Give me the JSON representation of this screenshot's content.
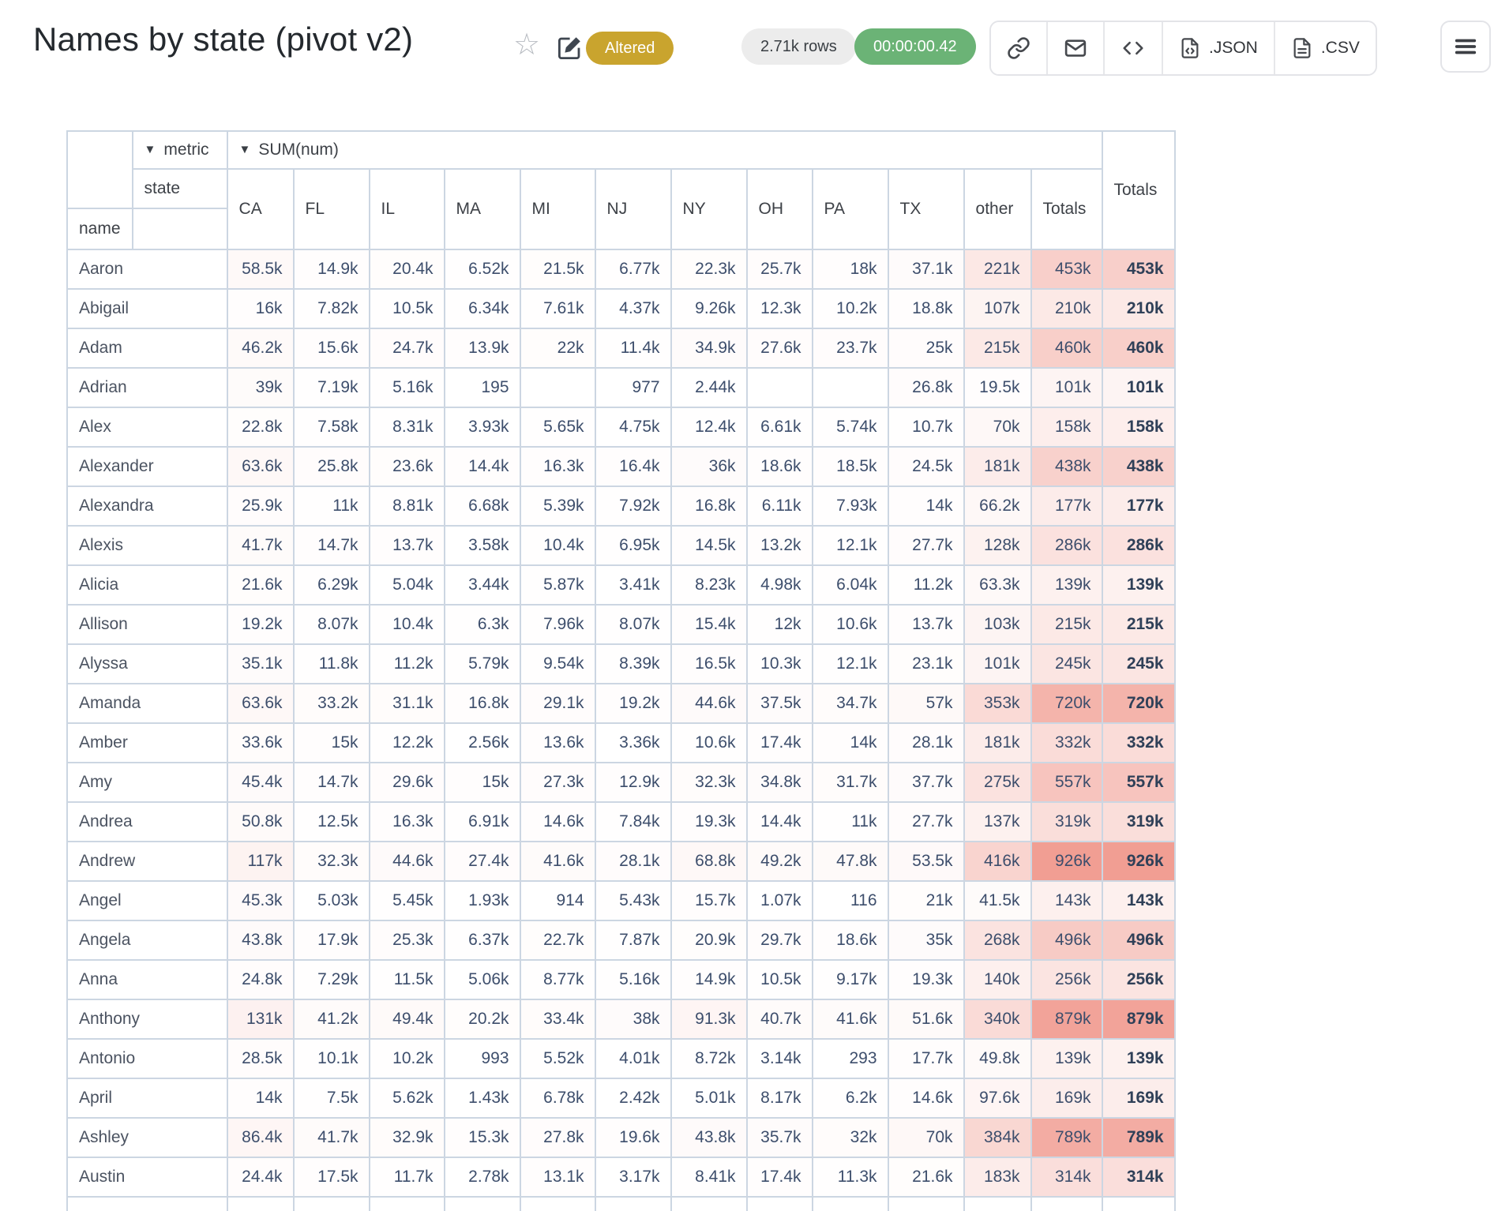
{
  "header": {
    "title": "Names by state (pivot v2)",
    "altered_badge": "Altered",
    "rows_badge": "2.71k rows",
    "timer_badge": "00:00:00.42",
    "json_button": ".JSON",
    "csv_button": ".CSV"
  },
  "icons": {
    "star": "☆",
    "edit": "pencil-square",
    "link": "chain-link",
    "mail": "envelope",
    "embed": "code-brackets",
    "json_file": "file-code",
    "csv_file": "file-text",
    "menu": "hamburger",
    "dropdown": "▼"
  },
  "colors": {
    "altered_badge_bg": "#c9a42e",
    "rows_badge_bg": "#ececec",
    "timer_badge_bg": "#6bb376",
    "heat_base_rgb": "241,158,147",
    "table_border": "#ccd6e2"
  },
  "pivot": {
    "metric_label": "metric",
    "sum_label": "SUM(num)",
    "state_label": "state",
    "name_label": "name",
    "grand_total_label": "Totals",
    "heat_max": 926000,
    "columns": [
      "CA",
      "FL",
      "IL",
      "MA",
      "MI",
      "NJ",
      "NY",
      "OH",
      "PA",
      "TX",
      "other",
      "Totals"
    ],
    "rows": [
      {
        "name": "Aaron",
        "values": [
          "58.5k",
          "14.9k",
          "20.4k",
          "6.52k",
          "21.5k",
          "6.77k",
          "22.3k",
          "25.7k",
          "18k",
          "37.1k",
          "221k",
          "453k"
        ],
        "grand": "453k"
      },
      {
        "name": "Abigail",
        "values": [
          "16k",
          "7.82k",
          "10.5k",
          "6.34k",
          "7.61k",
          "4.37k",
          "9.26k",
          "12.3k",
          "10.2k",
          "18.8k",
          "107k",
          "210k"
        ],
        "grand": "210k"
      },
      {
        "name": "Adam",
        "values": [
          "46.2k",
          "15.6k",
          "24.7k",
          "13.9k",
          "22k",
          "11.4k",
          "34.9k",
          "27.6k",
          "23.7k",
          "25k",
          "215k",
          "460k"
        ],
        "grand": "460k"
      },
      {
        "name": "Adrian",
        "values": [
          "39k",
          "7.19k",
          "5.16k",
          "195",
          "",
          "977",
          "2.44k",
          "",
          "",
          "26.8k",
          "19.5k",
          "101k"
        ],
        "grand": "101k"
      },
      {
        "name": "Alex",
        "values": [
          "22.8k",
          "7.58k",
          "8.31k",
          "3.93k",
          "5.65k",
          "4.75k",
          "12.4k",
          "6.61k",
          "5.74k",
          "10.7k",
          "70k",
          "158k"
        ],
        "grand": "158k"
      },
      {
        "name": "Alexander",
        "values": [
          "63.6k",
          "25.8k",
          "23.6k",
          "14.4k",
          "16.3k",
          "16.4k",
          "36k",
          "18.6k",
          "18.5k",
          "24.5k",
          "181k",
          "438k"
        ],
        "grand": "438k"
      },
      {
        "name": "Alexandra",
        "values": [
          "25.9k",
          "11k",
          "8.81k",
          "6.68k",
          "5.39k",
          "7.92k",
          "16.8k",
          "6.11k",
          "7.93k",
          "14k",
          "66.2k",
          "177k"
        ],
        "grand": "177k"
      },
      {
        "name": "Alexis",
        "values": [
          "41.7k",
          "14.7k",
          "13.7k",
          "3.58k",
          "10.4k",
          "6.95k",
          "14.5k",
          "13.2k",
          "12.1k",
          "27.7k",
          "128k",
          "286k"
        ],
        "grand": "286k"
      },
      {
        "name": "Alicia",
        "values": [
          "21.6k",
          "6.29k",
          "5.04k",
          "3.44k",
          "5.87k",
          "3.41k",
          "8.23k",
          "4.98k",
          "6.04k",
          "11.2k",
          "63.3k",
          "139k"
        ],
        "grand": "139k"
      },
      {
        "name": "Allison",
        "values": [
          "19.2k",
          "8.07k",
          "10.4k",
          "6.3k",
          "7.96k",
          "8.07k",
          "15.4k",
          "12k",
          "10.6k",
          "13.7k",
          "103k",
          "215k"
        ],
        "grand": "215k"
      },
      {
        "name": "Alyssa",
        "values": [
          "35.1k",
          "11.8k",
          "11.2k",
          "5.79k",
          "9.54k",
          "8.39k",
          "16.5k",
          "10.3k",
          "12.1k",
          "23.1k",
          "101k",
          "245k"
        ],
        "grand": "245k"
      },
      {
        "name": "Amanda",
        "values": [
          "63.6k",
          "33.2k",
          "31.1k",
          "16.8k",
          "29.1k",
          "19.2k",
          "44.6k",
          "37.5k",
          "34.7k",
          "57k",
          "353k",
          "720k"
        ],
        "grand": "720k"
      },
      {
        "name": "Amber",
        "values": [
          "33.6k",
          "15k",
          "12.2k",
          "2.56k",
          "13.6k",
          "3.36k",
          "10.6k",
          "17.4k",
          "14k",
          "28.1k",
          "181k",
          "332k"
        ],
        "grand": "332k"
      },
      {
        "name": "Amy",
        "values": [
          "45.4k",
          "14.7k",
          "29.6k",
          "15k",
          "27.3k",
          "12.9k",
          "32.3k",
          "34.8k",
          "31.7k",
          "37.7k",
          "275k",
          "557k"
        ],
        "grand": "557k"
      },
      {
        "name": "Andrea",
        "values": [
          "50.8k",
          "12.5k",
          "16.3k",
          "6.91k",
          "14.6k",
          "7.84k",
          "19.3k",
          "14.4k",
          "11k",
          "27.7k",
          "137k",
          "319k"
        ],
        "grand": "319k"
      },
      {
        "name": "Andrew",
        "values": [
          "117k",
          "32.3k",
          "44.6k",
          "27.4k",
          "41.6k",
          "28.1k",
          "68.8k",
          "49.2k",
          "47.8k",
          "53.5k",
          "416k",
          "926k"
        ],
        "grand": "926k"
      },
      {
        "name": "Angel",
        "values": [
          "45.3k",
          "5.03k",
          "5.45k",
          "1.93k",
          "914",
          "5.43k",
          "15.7k",
          "1.07k",
          "116",
          "21k",
          "41.5k",
          "143k"
        ],
        "grand": "143k"
      },
      {
        "name": "Angela",
        "values": [
          "43.8k",
          "17.9k",
          "25.3k",
          "6.37k",
          "22.7k",
          "7.87k",
          "20.9k",
          "29.7k",
          "18.6k",
          "35k",
          "268k",
          "496k"
        ],
        "grand": "496k"
      },
      {
        "name": "Anna",
        "values": [
          "24.8k",
          "7.29k",
          "11.5k",
          "5.06k",
          "8.77k",
          "5.16k",
          "14.9k",
          "10.5k",
          "9.17k",
          "19.3k",
          "140k",
          "256k"
        ],
        "grand": "256k"
      },
      {
        "name": "Anthony",
        "values": [
          "131k",
          "41.2k",
          "49.4k",
          "20.2k",
          "33.4k",
          "38k",
          "91.3k",
          "40.7k",
          "41.6k",
          "51.6k",
          "340k",
          "879k"
        ],
        "grand": "879k"
      },
      {
        "name": "Antonio",
        "values": [
          "28.5k",
          "10.1k",
          "10.2k",
          "993",
          "5.52k",
          "4.01k",
          "8.72k",
          "3.14k",
          "293",
          "17.7k",
          "49.8k",
          "139k"
        ],
        "grand": "139k"
      },
      {
        "name": "April",
        "values": [
          "14k",
          "7.5k",
          "5.62k",
          "1.43k",
          "6.78k",
          "2.42k",
          "5.01k",
          "8.17k",
          "6.2k",
          "14.6k",
          "97.6k",
          "169k"
        ],
        "grand": "169k"
      },
      {
        "name": "Ashley",
        "values": [
          "86.4k",
          "41.7k",
          "32.9k",
          "15.3k",
          "27.8k",
          "19.6k",
          "43.8k",
          "35.7k",
          "32k",
          "70k",
          "384k",
          "789k"
        ],
        "grand": "789k"
      },
      {
        "name": "Austin",
        "values": [
          "24.4k",
          "17.5k",
          "11.7k",
          "2.78k",
          "13.1k",
          "3.17k",
          "8.41k",
          "17.4k",
          "11.3k",
          "21.6k",
          "183k",
          "314k"
        ],
        "grand": "314k"
      }
    ]
  }
}
